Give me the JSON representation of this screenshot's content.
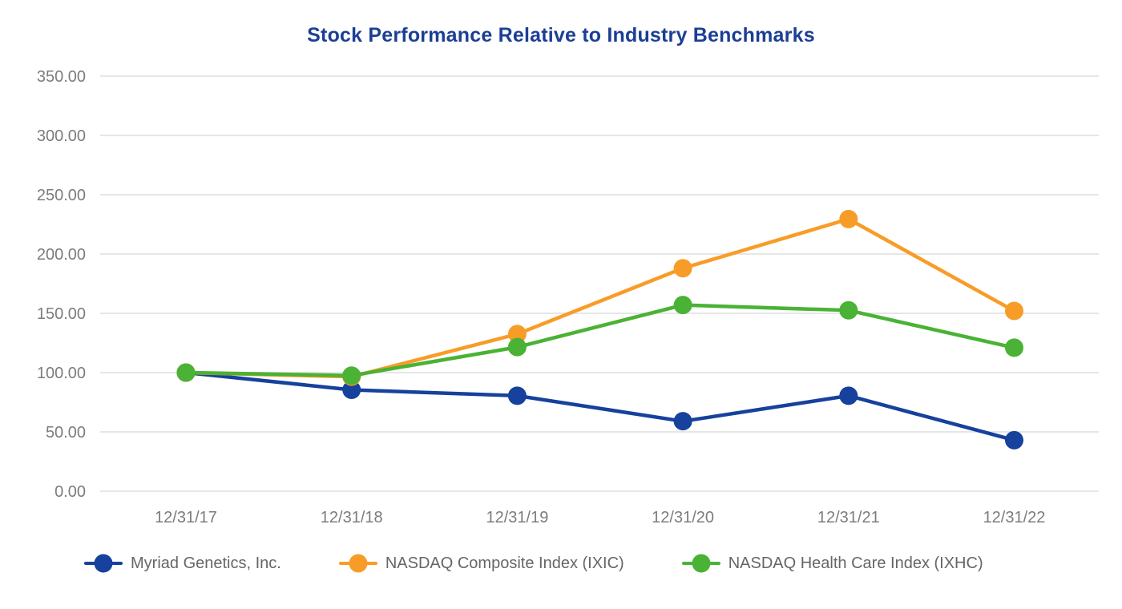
{
  "chart_data": {
    "type": "line",
    "title": "Stock Performance Relative to Industry Benchmarks",
    "categories": [
      "12/31/17",
      "12/31/18",
      "12/31/19",
      "12/31/20",
      "12/31/21",
      "12/31/22"
    ],
    "series": [
      {
        "name": "Myriad Genetics, Inc.",
        "color": "#16419C",
        "values": [
          100,
          85.5,
          80.5,
          59,
          80.5,
          43
        ]
      },
      {
        "name": "NASDAQ Composite Index (IXIC)",
        "color": "#F89C28",
        "values": [
          100,
          96.5,
          132.5,
          188,
          229.5,
          152
        ]
      },
      {
        "name": "NASDAQ Health Care Index (IXHC)",
        "color": "#4AB234",
        "values": [
          100,
          97.5,
          121.5,
          157,
          152.5,
          121
        ]
      }
    ],
    "xlabel": "",
    "ylabel": "",
    "ylim": [
      0,
      350
    ],
    "ytick_step": 50,
    "ytick_decimals": 2,
    "grid": "horizontal",
    "legend_position": "bottom",
    "marker": "circle"
  },
  "colors": {
    "title": "#1C3F94",
    "axis_text": "#7C7C7C",
    "gridline": "#E6E6E6",
    "legend_text": "#666666",
    "background": "#FFFFFF"
  }
}
